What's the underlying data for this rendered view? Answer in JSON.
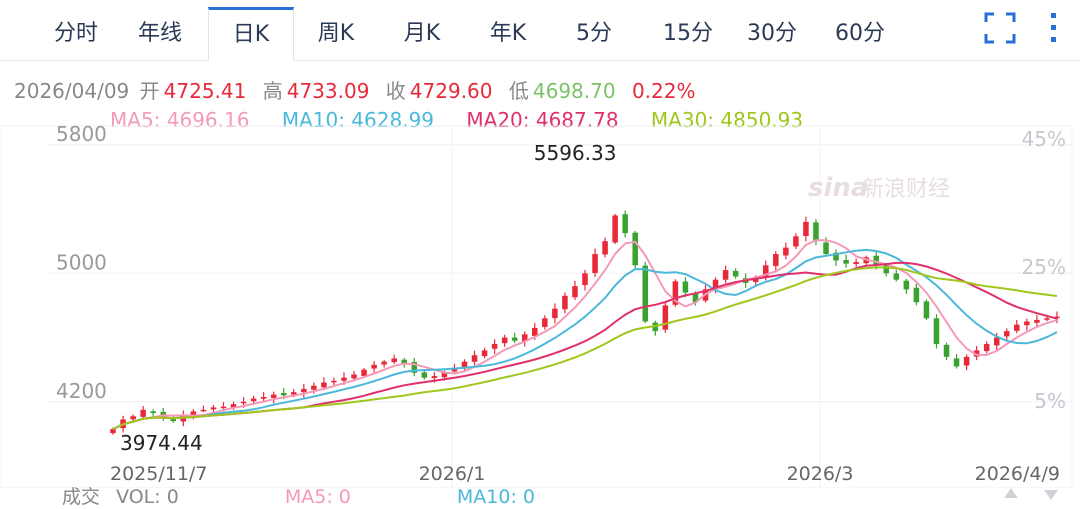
{
  "tabs": [
    {
      "label": "分时",
      "active": false
    },
    {
      "label": "年线",
      "active": false
    },
    {
      "label": "日K",
      "active": true
    },
    {
      "label": "周K",
      "active": false
    },
    {
      "label": "月K",
      "active": false
    },
    {
      "label": "年K",
      "active": false
    },
    {
      "label": "5分",
      "active": false
    },
    {
      "label": "15分",
      "active": false
    },
    {
      "label": "30分",
      "active": false
    },
    {
      "label": "60分",
      "active": false
    }
  ],
  "icons": {
    "fullscreen": "fullscreen-icon",
    "more": "more-vertical-icon"
  },
  "quote": {
    "date": "2026/04/09",
    "open_label": "开",
    "open": "4725.41",
    "high_label": "高",
    "high": "4733.09",
    "close_label": "收",
    "close": "4729.60",
    "low_label": "低",
    "low": "4698.70",
    "change": "0.22%"
  },
  "ma": {
    "ma5": "MA5: 4696.16",
    "ma10": "MA10: 4628.99",
    "ma20": "MA20: 4687.78",
    "ma30": "MA30: 4850.93"
  },
  "watermark": {
    "logo": "sina",
    "text": "新浪财经"
  },
  "volume_bar": {
    "label": "成交",
    "vol": "VOL: 0",
    "ma5": "MA5: 0",
    "ma10": "MA10: 0"
  },
  "colors": {
    "up": "#e8293a",
    "down": "#3aa32f",
    "ma5": "#f49ab6",
    "ma10": "#4bb8db",
    "ma20": "#e0306a",
    "ma30": "#a0c71e",
    "accent": "#2a6fd6"
  },
  "chart_data": {
    "type": "candlestick",
    "y_ticks": [
      "5800",
      "5000",
      "4200"
    ],
    "right_ticks": [
      "45%",
      "25%",
      "5%"
    ],
    "x_ticks": [
      "2025/11/7",
      "2026/1",
      "2026/3",
      "2026/4/9"
    ],
    "max_label": "5596.33",
    "min_label": "3974.44",
    "ylim": [
      3850,
      5830
    ],
    "grid": true,
    "closes": [
      4030,
      4090,
      4110,
      4150,
      4130,
      4100,
      4080,
      4120,
      4140,
      4150,
      4165,
      4170,
      4185,
      4200,
      4220,
      4230,
      4245,
      4240,
      4260,
      4280,
      4300,
      4320,
      4330,
      4350,
      4370,
      4400,
      4430,
      4450,
      4470,
      4440,
      4380,
      4350,
      4360,
      4380,
      4410,
      4450,
      4490,
      4520,
      4560,
      4600,
      4580,
      4620,
      4660,
      4720,
      4780,
      4860,
      4920,
      5000,
      5120,
      5200,
      5360,
      5250,
      5050,
      4700,
      4640,
      4800,
      4950,
      4880,
      4820,
      4900,
      4960,
      5020,
      4980,
      4940,
      4970,
      5050,
      5120,
      5160,
      5230,
      5320,
      5200,
      5120,
      5080,
      5060,
      5070,
      5100,
      5050,
      5000,
      4960,
      4900,
      4820,
      4720,
      4560,
      4480,
      4420,
      4480,
      4520,
      4560,
      4600,
      4640,
      4680,
      4700,
      4710,
      4720,
      4730
    ]
  }
}
